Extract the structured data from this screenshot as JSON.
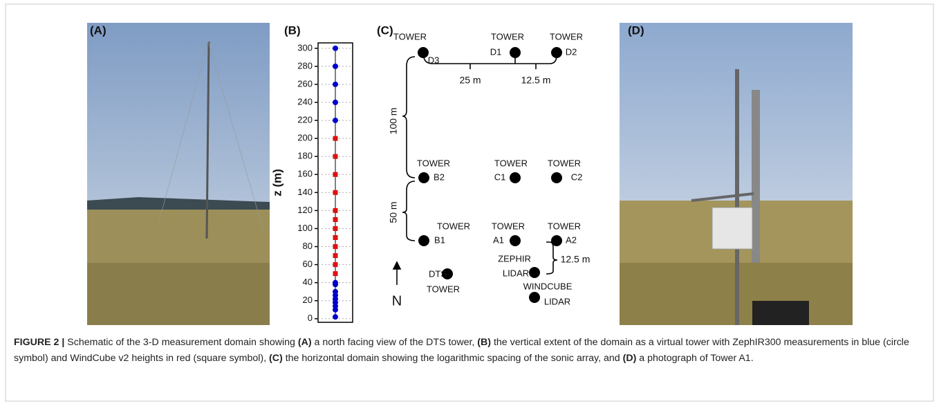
{
  "panel_labels": [
    "(A)",
    "(B)",
    "(C)",
    "(D)"
  ],
  "chart_data": {
    "type": "scatter",
    "y_label": "z (m)",
    "ylim": [
      -4,
      306
    ],
    "yticks": [
      0,
      20,
      40,
      60,
      80,
      100,
      120,
      140,
      160,
      180,
      200,
      220,
      240,
      260,
      280,
      300
    ],
    "grid": true,
    "series": [
      {
        "color": "#0000cc",
        "marker": "circle",
        "values": [
          300,
          280,
          260,
          240,
          220,
          40,
          38,
          30,
          26,
          22,
          18,
          14,
          10,
          2
        ]
      },
      {
        "color": "#dd1111",
        "marker": "square",
        "values": [
          200,
          180,
          160,
          140,
          120,
          110,
          100,
          90,
          80,
          70,
          60,
          50
        ]
      }
    ]
  },
  "diagram": {
    "nodes": [
      {
        "lines": [
          "TOWER",
          "D3"
        ]
      },
      {
        "lines": [
          "TOWER",
          "D1"
        ]
      },
      {
        "lines": [
          "TOWER",
          "D2"
        ]
      },
      {
        "lines": [
          "TOWER",
          "B2"
        ]
      },
      {
        "lines": [
          "TOWER",
          "C1"
        ]
      },
      {
        "lines": [
          "TOWER",
          "C2"
        ]
      },
      {
        "lines": [
          "TOWER",
          "B1"
        ]
      },
      {
        "lines": [
          "TOWER",
          "A1"
        ]
      },
      {
        "lines": [
          "TOWER",
          "A2"
        ]
      },
      {
        "lines": [
          "DTS",
          "TOWER"
        ]
      },
      {
        "lines": [
          "ZEPHIR",
          "LIDAR"
        ]
      },
      {
        "lines": [
          "WINDCUBE",
          "LIDAR"
        ]
      }
    ],
    "dimensions": [
      "25 m",
      "12.5 m",
      "100 m",
      "50 m",
      "12.5 m"
    ],
    "north": "N"
  },
  "caption": [
    {
      "text": "FIGURE 2 |",
      "bold": true
    },
    {
      "text": " Schematic of the 3-D measurement domain showing ",
      "bold": false
    },
    {
      "text": "(A)",
      "bold": true
    },
    {
      "text": " a north facing view of the DTS tower, ",
      "bold": false
    },
    {
      "text": "(B)",
      "bold": true
    },
    {
      "text": " the vertical extent of the domain as a virtual tower with ZephIR300 measurements in blue (circle symbol) and WindCube v2 heights in red (square symbol), ",
      "bold": false
    },
    {
      "text": "(C)",
      "bold": true
    },
    {
      "text": " the horizontal domain showing the logarithmic spacing of the sonic array, and ",
      "bold": false
    },
    {
      "text": "(D)",
      "bold": true
    },
    {
      "text": " a photograph of Tower A1.",
      "bold": false
    }
  ]
}
